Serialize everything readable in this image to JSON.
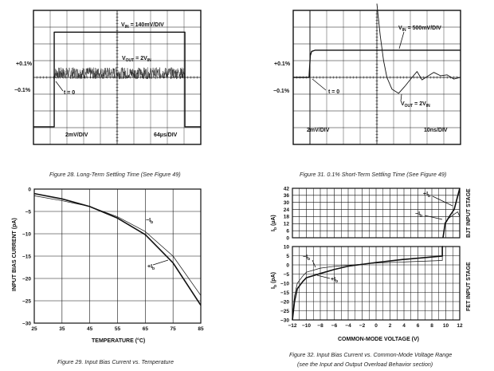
{
  "chart_data": [
    {
      "id": "fig28",
      "type": "line",
      "title": "Figure 28. Long-Term Settling Time (See Figure 49)",
      "xlabel": "",
      "ylabel": "",
      "units": "oscilloscope divisions",
      "xlim": [
        0,
        10
      ],
      "ylim": [
        -4,
        4
      ],
      "grid": true,
      "annotations": {
        "vin_v": "V",
        "vin_sub": "IN",
        "vin_rest": " = 140mV/DIV",
        "vout_v": "V",
        "vout_sub": "OUT",
        "vout_mid": " = 2V",
        "vout_sub2": "IN",
        "plus": "+0.1%",
        "minus": "−0.1%",
        "t0": "t = 0",
        "vscale": "2mV/DIV",
        "hscale": "64µs/DIV"
      },
      "series": [
        {
          "name": "VIN",
          "x": [
            0,
            1.24,
            1.24,
            9.05,
            9.05,
            10
          ],
          "y": [
            -2.95,
            -2.95,
            2.7,
            2.7,
            -2.95,
            -2.95
          ]
        },
        {
          "name": "VOUT",
          "x_start": 1.24,
          "x_end": 9.05,
          "baseline": 0.25,
          "noise_amplitude": 0.35
        }
      ]
    },
    {
      "id": "fig31",
      "type": "line",
      "title": "Figure 31. 0.1% Short-Term Settling Time (See Figure 49)",
      "xlabel": "",
      "ylabel": "",
      "units": "oscilloscope divisions",
      "xlim": [
        0,
        10
      ],
      "ylim": [
        -4,
        4
      ],
      "grid": true,
      "annotations": {
        "vin_v": "V",
        "vin_sub": "IN",
        "vin_rest": " = 500mV/DIV",
        "vout_v": "V",
        "vout_sub": "OUT",
        "vout_mid": " = 2V",
        "vout_sub2": "IN",
        "plus": "+0.1%",
        "minus": "−0.1%",
        "t0": "t = 0",
        "vscale": "2mV/DIV",
        "hscale": "10ns/DIV"
      },
      "series": [
        {
          "name": "VIN",
          "x": [
            0,
            0.95,
            1.02,
            1.1,
            1.3,
            10
          ],
          "y": [
            0,
            0,
            1.3,
            1.55,
            1.62,
            1.62
          ]
        },
        {
          "name": "VOUT",
          "x": [
            5,
            5.2,
            5.4,
            5.6,
            5.9,
            6.3,
            6.7,
            7.1,
            7.4,
            7.7,
            8.0,
            8.4,
            8.8,
            9.2,
            9.6,
            10
          ],
          "y": [
            4.4,
            2.5,
            1.0,
            0.0,
            -0.7,
            -0.95,
            -0.5,
            0.0,
            0.35,
            -0.15,
            0.05,
            0.3,
            0.1,
            0.15,
            -0.1,
            0.0
          ]
        }
      ]
    },
    {
      "id": "fig29",
      "type": "line",
      "title": "Figure 29. Input Bias Current vs. Temperature",
      "xlabel": "TEMPERATURE (°C)",
      "ylabel": "INPUT BIAS CURRENT (pA)",
      "xlim": [
        25,
        85
      ],
      "ylim": [
        -30,
        0
      ],
      "xticks": [
        "25",
        "35",
        "45",
        "55",
        "65",
        "75",
        "85"
      ],
      "yticks": [
        "0",
        "−5",
        "−10",
        "−15",
        "−20",
        "−25",
        "−30"
      ],
      "grid": true,
      "legend": {
        "minus": "−I",
        "plus": "+I",
        "sub": "b"
      },
      "series": [
        {
          "name": "+Ib",
          "x": [
            25,
            35,
            45,
            55,
            65,
            75,
            85
          ],
          "y": [
            -1.0,
            -2.2,
            -3.9,
            -6.5,
            -10.2,
            -16.5,
            -26
          ]
        },
        {
          "name": "-Ib",
          "x": [
            25,
            35,
            45,
            55,
            65,
            75,
            85
          ],
          "y": [
            -1.5,
            -2.6,
            -3.9,
            -6.2,
            -9.5,
            -15.0,
            -23.8
          ]
        }
      ]
    },
    {
      "id": "fig32",
      "type": "line",
      "title": "Figure 32. Input Bias Current vs. Common-Mode Voltage Range",
      "subtitle": "(see the Input and Output Overload Behavior section)",
      "xlabel": "COMMON-MODE VOLTAGE (V)",
      "xlim": [
        -12,
        12
      ],
      "xticks": [
        "−12",
        "−10",
        "−8",
        "−6",
        "−4",
        "−2",
        "0",
        "2",
        "4",
        "6",
        "8",
        "10",
        "12"
      ],
      "grid": true,
      "legend": {
        "minus": "−I",
        "plus": "+I",
        "sub": "b"
      },
      "panels": [
        {
          "name": "BJT INPUT STAGE",
          "ylabel_main": "I",
          "ylabel_sub": "b",
          "ylabel_unit": " (µA)",
          "ylim": [
            0,
            42
          ],
          "yticks": [
            "0",
            "6",
            "12",
            "18",
            "24",
            "30",
            "36",
            "42"
          ],
          "series": [
            {
              "name": "+Ib",
              "x": [
                9.6,
                9.9,
                10.5,
                11.2,
                12
              ],
              "y": [
                0,
                12,
                18,
                24,
                42
              ]
            },
            {
              "name": "-Ib",
              "x": [
                9.6,
                9.9,
                10.5,
                11.2,
                11.7,
                12
              ],
              "y": [
                0,
                13,
                17,
                20,
                22,
                18
              ]
            }
          ]
        },
        {
          "name": "FET INPUT STAGE",
          "ylabel_main": "I",
          "ylabel_sub": "b",
          "ylabel_unit": " (pA)",
          "ylim": [
            -30,
            10
          ],
          "yticks": [
            "10",
            "5",
            "0",
            "−5",
            "−10",
            "−15",
            "−20",
            "−25",
            "−30"
          ],
          "series": [
            {
              "name": "+Ib",
              "x": [
                -12,
                -11.7,
                -11.3,
                -10.5,
                -10,
                -8,
                -6,
                -4,
                0,
                4,
                9.5,
                9.5,
                9.6
              ],
              "y": [
                -30,
                -20,
                -13,
                -9,
                -7,
                -4.7,
                -2.5,
                -0.7,
                1.3,
                3,
                4.8,
                10,
                10
              ]
            },
            {
              "name": "-Ib",
              "x": [
                -12,
                -11.7,
                -11.3,
                -10.5,
                -10,
                -8,
                -6,
                -4,
                0,
                4,
                9.5,
                9.5,
                9.6
              ],
              "y": [
                -29,
                -17,
                -10,
                -6,
                -4,
                -1.8,
                -0.8,
                -0.2,
                1,
                1.6,
                2.4,
                10,
                10
              ]
            }
          ]
        }
      ]
    }
  ]
}
